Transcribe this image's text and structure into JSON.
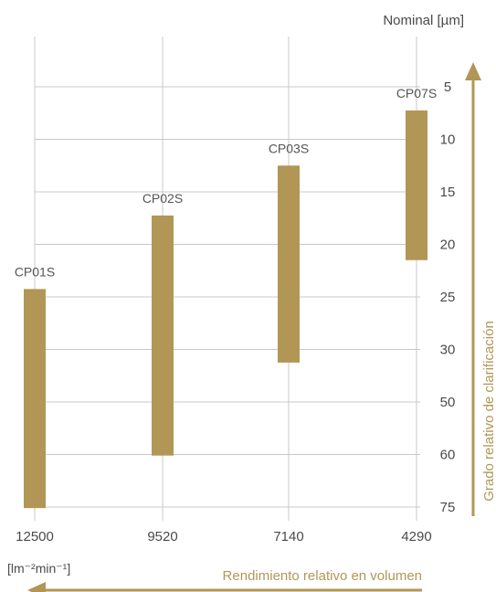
{
  "chart_data": {
    "type": "floating-bar",
    "y_unit_label": "Nominal [µm]",
    "y_axis_title": "Grado relativo de clarificación",
    "x_axis_title": "Rendimiento relativo en volumen",
    "x_unit_label": "[lm⁻²min⁻¹]",
    "y_ticks": [
      "5",
      "10",
      "15",
      "20",
      "25",
      "30",
      "50",
      "60",
      "75"
    ],
    "categories": [
      "12500",
      "9520",
      "7140",
      "4290"
    ],
    "bars": [
      {
        "label": "CP01S",
        "from": "25",
        "to": "75",
        "from_offset": -0.15,
        "to_offset": 0.02
      },
      {
        "label": "CP02S",
        "from": "15",
        "to": "60",
        "from_offset": 0.45,
        "to_offset": 0.02
      },
      {
        "label": "CP03S",
        "from": "10",
        "to": "30",
        "from_offset": 0.5,
        "to_offset": 0.25
      },
      {
        "label": "CP07S",
        "from": "5",
        "to": "20",
        "from_offset": 0.45,
        "to_offset": 0.3
      }
    ],
    "grid": true,
    "colors": {
      "bar": "#b29656",
      "grid": "#c8c8c8",
      "axis_text": "#4a4a4a",
      "accent": "#b29656"
    }
  }
}
